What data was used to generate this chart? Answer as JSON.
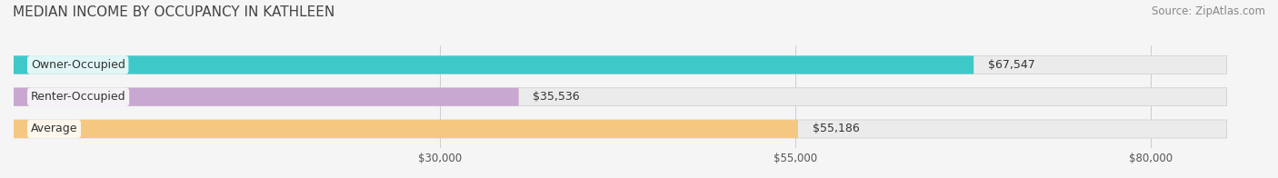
{
  "title": "MEDIAN INCOME BY OCCUPANCY IN KATHLEEN",
  "source": "Source: ZipAtlas.com",
  "categories": [
    "Owner-Occupied",
    "Renter-Occupied",
    "Average"
  ],
  "values": [
    67547,
    35536,
    55186
  ],
  "bar_colors": [
    "#3ec8c8",
    "#c8a8d0",
    "#f5c882"
  ],
  "bar_bg_color": "#e8e8e8",
  "label_color": "#555555",
  "value_labels": [
    "$67,547",
    "$35,536",
    "$55,186"
  ],
  "x_ticks": [
    30000,
    55000,
    80000
  ],
  "x_tick_labels": [
    "$30,000",
    "$55,000",
    "$80,000"
  ],
  "xlim": [
    0,
    88000
  ],
  "title_fontsize": 11,
  "source_fontsize": 8.5,
  "bar_label_fontsize": 9,
  "value_label_fontsize": 9,
  "background_color": "#f5f5f5",
  "bar_bg_alpha": 1.0,
  "bar_height": 0.55
}
